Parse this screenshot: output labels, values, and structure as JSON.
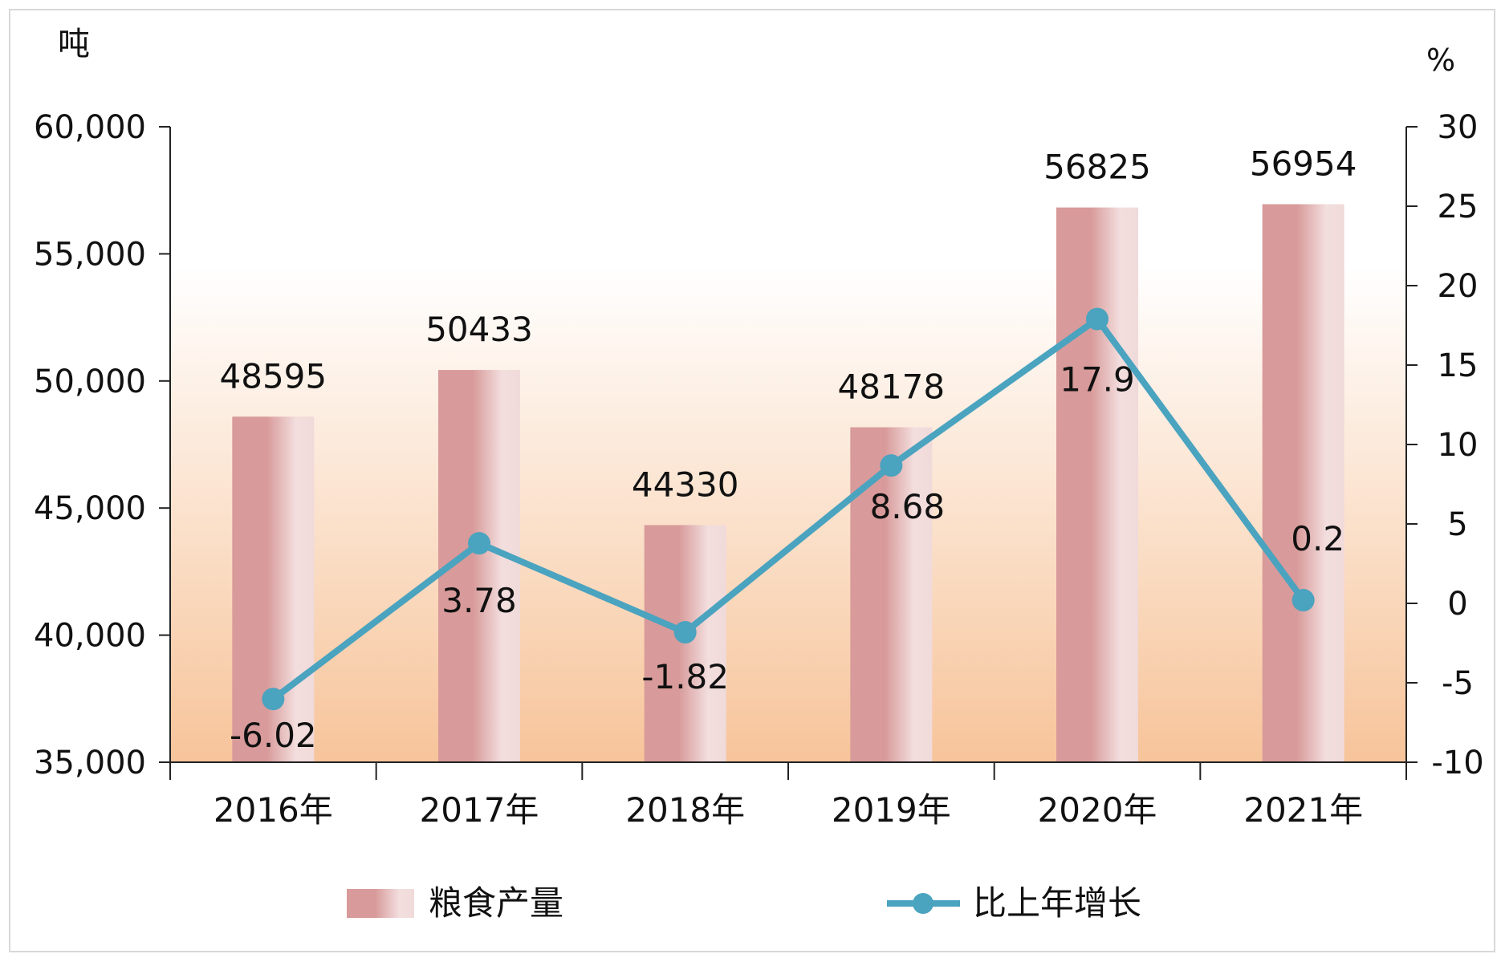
{
  "chart_data": {
    "type": "bar",
    "categories": [
      "2016年",
      "2017年",
      "2018年",
      "2019年",
      "2020年",
      "2021年"
    ],
    "series": [
      {
        "name": "粮食产量",
        "type": "bar",
        "axis": "left",
        "values": [
          48595,
          50433,
          44330,
          48178,
          56825,
          56954
        ],
        "labels": [
          "48595",
          "50433",
          "44330",
          "48178",
          "56825",
          "56954"
        ]
      },
      {
        "name": "比上年增长",
        "type": "line",
        "axis": "right",
        "values": [
          -6.02,
          3.78,
          -1.82,
          8.68,
          17.9,
          0.2
        ],
        "labels": [
          "-6.02",
          "3.78",
          "-1.82",
          "8.68",
          "17.9",
          "0.2"
        ]
      }
    ],
    "y_left": {
      "unit": "吨",
      "range": [
        35000,
        60000
      ],
      "ticks": [
        35000,
        40000,
        45000,
        50000,
        55000,
        60000
      ],
      "tick_labels": [
        "35,000",
        "40,000",
        "45,000",
        "50,000",
        "55,000",
        "60,000"
      ]
    },
    "y_right": {
      "unit": "%",
      "range": [
        -10,
        30
      ],
      "ticks": [
        -10,
        -5,
        0,
        5,
        10,
        15,
        20,
        25,
        30
      ],
      "tick_labels": [
        "-10",
        "-5",
        "0",
        "5",
        "10",
        "15",
        "20",
        "25",
        "30"
      ]
    },
    "legend": {
      "placement": "bottom",
      "items": [
        "粮食产量",
        "比上年增长"
      ]
    },
    "colors": {
      "bar": "#d89a9a",
      "bar_light": "#f3dede",
      "line": "#4aa3bf",
      "bg_top": "#ffffff",
      "bg_bottom": "#f7c49a"
    },
    "grid": false
  }
}
